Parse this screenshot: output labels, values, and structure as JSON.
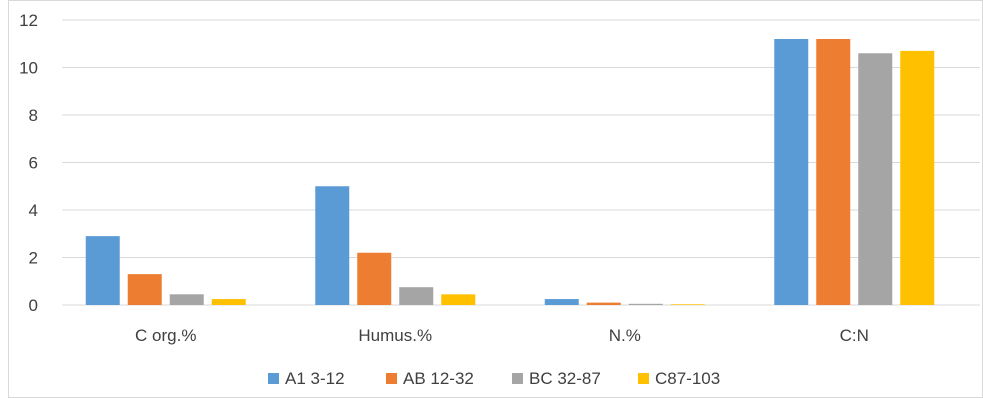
{
  "chart_data": {
    "type": "bar",
    "title": "",
    "xlabel": "",
    "ylabel": "",
    "ylim": [
      0,
      12
    ],
    "yticks": [
      0,
      2,
      4,
      6,
      8,
      10,
      12
    ],
    "grid": true,
    "legend_position": "bottom",
    "categories": [
      "C org.%",
      "Humus.%",
      "N.%",
      "C:N"
    ],
    "series": [
      {
        "name": "A1 3-12",
        "color": "#5B9BD5",
        "values": [
          2.9,
          5.0,
          0.25,
          11.2
        ]
      },
      {
        "name": "AB 12-32",
        "color": "#ED7D31",
        "values": [
          1.3,
          2.2,
          0.1,
          11.2
        ]
      },
      {
        "name": "BC 32-87",
        "color": "#A5A5A5",
        "values": [
          0.45,
          0.75,
          0.05,
          10.6
        ]
      },
      {
        "name": "C87-103",
        "color": "#FFC000",
        "values": [
          0.25,
          0.45,
          0.03,
          10.7
        ]
      }
    ]
  }
}
